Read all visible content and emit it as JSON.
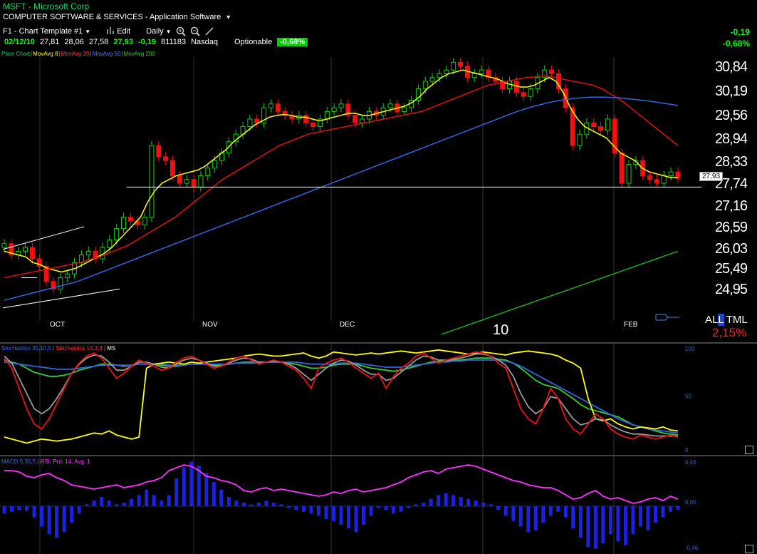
{
  "header": {
    "title": "MSFT - Microsoft Corp",
    "subtitle": "COMPUTER SOFTWARE & SERVICES - Application Software"
  },
  "toolbar": {
    "template": "F1 - Chart Template #1",
    "edit": "Edit",
    "period": "Daily"
  },
  "quote": {
    "date": "02/12/10",
    "open": "27,81",
    "high": "28,06",
    "low": "27,58",
    "last": "27,93",
    "change": "-0,19",
    "volume": "811183",
    "exchange": "Nasdaq",
    "optionable": "Optionable",
    "pct_badge": "-0,68%"
  },
  "right_stats": {
    "change": "-0,19",
    "pct": "-0,68%"
  },
  "legend": {
    "price": "Price Chart",
    "ma8": "MovAvg 8",
    "ma20": "MovAvg 20",
    "ma50": "MovAvg 50",
    "ma200": "MovAvg 200"
  },
  "price_axis": [
    "30,84",
    "30,19",
    "29,56",
    "28,94",
    "28,33",
    "27,74",
    "27,16",
    "26,59",
    "26,03",
    "25,49",
    "24,95"
  ],
  "price_tag": "27,93",
  "months": [
    "OCT",
    "NOV",
    "DEC",
    "FEB"
  ],
  "year_label": "10",
  "alert": {
    "prefix": "AL",
    "mid": "L",
    "suffix": "TML",
    "pct": "2,15%"
  },
  "stoch": {
    "legend1": "Stochastics 35,10,5",
    "legend2": "Stochastics 14,3,3",
    "legend3": "MS",
    "axis": [
      "100",
      "50",
      "0"
    ]
  },
  "macd": {
    "legend1": "MACD 5,35,5",
    "legend2": "RSI: Prd: 14; Avg: 1",
    "axis": [
      "0,46",
      "0,00",
      "-0,46"
    ]
  },
  "colors": {
    "up": "#11cc11",
    "down": "#ee1111",
    "ma8": "#ffff00",
    "ma20": "#dd1111",
    "ma50": "#3366dd",
    "ma200": "#22aa22"
  },
  "chart_data": {
    "type": "candlestick",
    "title": "MSFT - Microsoft Corp",
    "y_ticks": [
      30.84,
      30.19,
      29.56,
      28.94,
      28.33,
      27.74,
      27.16,
      26.59,
      26.03,
      25.49,
      24.95
    ],
    "ylim": [
      24.6,
      31.5
    ],
    "x_categories": [
      "OCT",
      "NOV",
      "DEC",
      "FEB"
    ],
    "closes": [
      26.2,
      25.9,
      26.0,
      26.1,
      25.8,
      25.6,
      25.2,
      25.0,
      25.3,
      25.4,
      25.7,
      25.9,
      26.0,
      25.8,
      26.1,
      26.3,
      26.6,
      26.9,
      26.8,
      26.7,
      26.9,
      28.8,
      28.5,
      28.4,
      28.0,
      27.8,
      27.9,
      27.7,
      28.0,
      28.2,
      28.4,
      28.6,
      28.9,
      29.1,
      29.3,
      29.5,
      29.4,
      29.8,
      29.9,
      29.7,
      29.6,
      29.5,
      29.6,
      29.4,
      29.3,
      29.5,
      29.7,
      29.8,
      29.9,
      29.6,
      29.4,
      29.5,
      29.7,
      29.6,
      29.8,
      29.9,
      29.7,
      29.8,
      30.0,
      30.3,
      30.5,
      30.6,
      30.7,
      30.8,
      31.0,
      30.9,
      30.6,
      30.7,
      30.8,
      30.6,
      30.5,
      30.3,
      30.5,
      30.2,
      30.1,
      30.3,
      30.6,
      30.8,
      30.7,
      30.3,
      29.8,
      28.8,
      29.1,
      29.4,
      29.3,
      29.2,
      29.5,
      28.6,
      27.8,
      28.3,
      28.4,
      28.0,
      27.9,
      27.8,
      28.0,
      28.1,
      27.93
    ],
    "ma8": [
      26.0,
      25.95,
      25.9,
      25.85,
      25.7,
      25.65,
      25.55,
      25.5,
      25.45,
      25.5,
      25.55,
      25.65,
      25.75,
      25.85,
      25.95,
      26.1,
      26.3,
      26.5,
      26.7,
      26.9,
      27.3,
      27.6,
      27.8,
      27.9,
      28.0,
      28.05,
      28.1,
      28.15,
      28.25,
      28.4,
      28.55,
      28.7,
      28.9,
      29.05,
      29.2,
      29.35,
      29.45,
      29.55,
      29.6,
      29.62,
      29.6,
      29.55,
      29.55,
      29.5,
      29.45,
      29.5,
      29.55,
      29.6,
      29.65,
      29.65,
      29.6,
      29.6,
      29.65,
      29.7,
      29.75,
      29.8,
      29.85,
      29.95,
      30.1,
      30.3,
      30.45,
      30.6,
      30.7,
      30.75,
      30.8,
      30.75,
      30.7,
      30.65,
      30.6,
      30.55,
      30.45,
      30.4,
      30.35,
      30.35,
      30.4,
      30.5,
      30.6,
      30.5,
      30.2,
      29.8,
      29.5,
      29.3,
      29.2,
      29.1,
      29.0,
      28.8,
      28.6,
      28.5,
      28.4,
      28.2,
      28.1,
      28.05,
      28.0,
      27.95,
      27.95
    ],
    "ma20": [
      25.3,
      25.35,
      25.4,
      25.45,
      25.5,
      25.55,
      25.6,
      25.65,
      25.7,
      25.78,
      25.85,
      25.95,
      26.05,
      26.15,
      26.3,
      26.45,
      26.6,
      26.75,
      26.9,
      27.1,
      27.3,
      27.5,
      27.7,
      27.9,
      28.05,
      28.2,
      28.35,
      28.5,
      28.65,
      28.8,
      28.9,
      29.0,
      29.1,
      29.15,
      29.2,
      29.25,
      29.3,
      29.35,
      29.4,
      29.45,
      29.5,
      29.55,
      29.6,
      29.65,
      29.7,
      29.8,
      29.9,
      30.0,
      30.1,
      30.2,
      30.3,
      30.4,
      30.45,
      30.5,
      30.55,
      30.6,
      30.62,
      30.65,
      30.6,
      30.55,
      30.5,
      30.45,
      30.4,
      30.3,
      30.15,
      30.0,
      29.8,
      29.6,
      29.4,
      29.2,
      29.0,
      28.8
    ],
    "ma50": [
      24.7,
      24.8,
      24.9,
      25.0,
      25.1,
      25.2,
      25.35,
      25.5,
      25.65,
      25.8,
      25.95,
      26.1,
      26.25,
      26.4,
      26.55,
      26.7,
      26.85,
      27.0,
      27.15,
      27.3,
      27.45,
      27.6,
      27.75,
      27.9,
      28.05,
      28.2,
      28.35,
      28.5,
      28.65,
      28.8,
      28.95,
      29.1,
      29.25,
      29.4,
      29.55,
      29.7,
      29.82,
      29.92,
      30.0,
      30.05,
      30.08,
      30.08,
      30.06,
      30.02,
      29.98,
      29.92,
      29.86
    ],
    "ma200": [
      23.8,
      23.9,
      24.0,
      24.1,
      24.2,
      24.3,
      24.4,
      24.5,
      24.6,
      24.7,
      24.8,
      24.9,
      25.0,
      25.1,
      25.2,
      25.3,
      25.4,
      25.5,
      25.6,
      25.7,
      25.8,
      25.9,
      26.0
    ]
  }
}
